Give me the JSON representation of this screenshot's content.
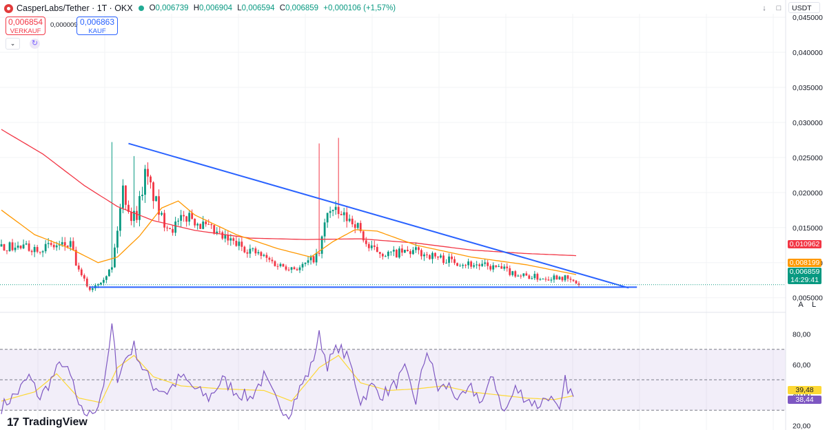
{
  "header": {
    "symbol": "CasperLabs/Tether · 1T · OKX",
    "open_label": "O",
    "open": "0,006739",
    "high_label": "H",
    "high": "0,006904",
    "low_label": "L",
    "low": "0,006594",
    "close_label": "C",
    "close": "0,006859",
    "change": "+0,000106 (+1,57%)"
  },
  "trade": {
    "sell_price": "0,006854",
    "sell_label": "VERKAUF",
    "spread": "0,000009",
    "buy_price": "0,006863",
    "buy_label": "KAUF"
  },
  "toolbar": {
    "currency": "USDT",
    "auto_label": "A",
    "log_label": "L",
    "dropdown_icon": "chevron-down-icon",
    "refresh_icon": "refresh-icon"
  },
  "price_tags": {
    "ma_red": "0,010962",
    "ma_orange": "0,008199",
    "last_price": "0,006859",
    "countdown": "14:29:41",
    "rsi_ma": "39,48",
    "rsi": "38,44"
  },
  "colors": {
    "up": "#089981",
    "down": "#f23645",
    "ma_red": "#f23645",
    "ma_orange": "#ff9800",
    "trendline": "#2962ff",
    "rsi": "#7e57c2",
    "rsi_ma": "#fdd835"
  },
  "watermark": "TradingView",
  "chart_data": [
    {
      "type": "candlestick",
      "y_ticks": [
        "0,045000",
        "0,040000",
        "0,035000",
        "0,030000",
        "0,025000",
        "0,020000",
        "0,015000",
        "0,010000",
        "0,005000"
      ],
      "ylim": [
        0.0035,
        0.0455
      ],
      "x_count": 210,
      "price_path": [
        [
          0,
          0.0123
        ],
        [
          10,
          0.0121
        ],
        [
          18,
          0.0123
        ],
        [
          25,
          0.0125
        ],
        [
          28,
          0.0086
        ],
        [
          32,
          0.0062
        ],
        [
          36,
          0.0076
        ],
        [
          40,
          0.0092
        ],
        [
          44,
          0.0205
        ],
        [
          47,
          0.0165
        ],
        [
          49,
          0.017
        ],
        [
          52,
          0.0225
        ],
        [
          55,
          0.0196
        ],
        [
          58,
          0.0162
        ],
        [
          62,
          0.015
        ],
        [
          68,
          0.0168
        ],
        [
          72,
          0.0155
        ],
        [
          80,
          0.0135
        ],
        [
          90,
          0.0118
        ],
        [
          100,
          0.0097
        ],
        [
          108,
          0.0092
        ],
        [
          115,
          0.0112
        ],
        [
          118,
          0.0175
        ],
        [
          122,
          0.0168
        ],
        [
          128,
          0.0158
        ],
        [
          133,
          0.012
        ],
        [
          140,
          0.0112
        ],
        [
          150,
          0.0116
        ],
        [
          160,
          0.0105
        ],
        [
          170,
          0.0098
        ],
        [
          180,
          0.0092
        ],
        [
          188,
          0.0082
        ],
        [
          196,
          0.0078
        ],
        [
          202,
          0.0081
        ],
        [
          209,
          0.0069
        ]
      ],
      "spikes": [
        [
          40,
          0.0272
        ],
        [
          115,
          0.027
        ],
        [
          122,
          0.0278
        ],
        [
          48,
          0.0252
        ]
      ],
      "moving_averages": [
        {
          "color": "ma_red",
          "points": [
            [
              0,
              0.029
            ],
            [
              15,
              0.0255
            ],
            [
              30,
              0.021
            ],
            [
              42,
              0.018
            ],
            [
              55,
              0.016
            ],
            [
              70,
              0.0146
            ],
            [
              90,
              0.0135
            ],
            [
              110,
              0.0133
            ],
            [
              130,
              0.0134
            ],
            [
              150,
              0.0128
            ],
            [
              170,
              0.0118
            ],
            [
              190,
              0.0113
            ],
            [
              208,
              0.011
            ]
          ]
        },
        {
          "color": "ma_orange",
          "points": [
            [
              0,
              0.0175
            ],
            [
              12,
              0.014
            ],
            [
              25,
              0.012
            ],
            [
              35,
              0.01
            ],
            [
              42,
              0.0108
            ],
            [
              50,
              0.0138
            ],
            [
              58,
              0.0178
            ],
            [
              64,
              0.0188
            ],
            [
              70,
              0.0168
            ],
            [
              85,
              0.014
            ],
            [
              100,
              0.012
            ],
            [
              112,
              0.0108
            ],
            [
              120,
              0.013
            ],
            [
              128,
              0.0147
            ],
            [
              136,
              0.0145
            ],
            [
              150,
              0.0125
            ],
            [
              170,
              0.0108
            ],
            [
              190,
              0.0097
            ],
            [
              208,
              0.0083
            ]
          ]
        }
      ],
      "trendlines": [
        {
          "from": [
            46,
            0.027
          ],
          "to": [
            227,
            0.0064
          ]
        },
        {
          "from": [
            32,
            0.0065
          ],
          "to": [
            230,
            0.0065
          ]
        }
      ],
      "last_price": 0.006859
    },
    {
      "type": "line",
      "name": "RSI",
      "y_ticks": [
        "80,00",
        "60,00",
        "40,00",
        "20,00"
      ],
      "ylim": [
        17,
        88
      ],
      "bands": {
        "upper": 70,
        "middle": 50,
        "lower": 30
      },
      "rsi_path": [
        [
          0,
          32
        ],
        [
          6,
          42
        ],
        [
          10,
          52
        ],
        [
          14,
          38
        ],
        [
          18,
          50
        ],
        [
          22,
          62
        ],
        [
          26,
          48
        ],
        [
          28,
          30
        ],
        [
          32,
          27
        ],
        [
          35,
          34
        ],
        [
          38,
          55
        ],
        [
          40,
          86
        ],
        [
          42,
          52
        ],
        [
          45,
          64
        ],
        [
          48,
          72
        ],
        [
          51,
          58
        ],
        [
          55,
          46
        ],
        [
          60,
          42
        ],
        [
          65,
          52
        ],
        [
          70,
          44
        ],
        [
          75,
          38
        ],
        [
          80,
          50
        ],
        [
          85,
          42
        ],
        [
          90,
          38
        ],
        [
          95,
          52
        ],
        [
          100,
          34
        ],
        [
          104,
          28
        ],
        [
          108,
          44
        ],
        [
          112,
          58
        ],
        [
          115,
          79
        ],
        [
          118,
          60
        ],
        [
          122,
          72
        ],
        [
          126,
          62
        ],
        [
          130,
          36
        ],
        [
          134,
          46
        ],
        [
          138,
          40
        ],
        [
          142,
          46
        ],
        [
          146,
          56
        ],
        [
          150,
          36
        ],
        [
          154,
          70
        ],
        [
          158,
          44
        ],
        [
          162,
          46
        ],
        [
          166,
          36
        ],
        [
          170,
          44
        ],
        [
          174,
          36
        ],
        [
          178,
          52
        ],
        [
          182,
          28
        ],
        [
          186,
          44
        ],
        [
          190,
          38
        ],
        [
          194,
          33
        ],
        [
          198,
          40
        ],
        [
          202,
          27
        ],
        [
          204,
          49
        ],
        [
          207,
          38
        ]
      ],
      "rsi_ma_path": [
        [
          0,
          36
        ],
        [
          12,
          42
        ],
        [
          20,
          54
        ],
        [
          28,
          38
        ],
        [
          36,
          35
        ],
        [
          42,
          58
        ],
        [
          48,
          66
        ],
        [
          55,
          52
        ],
        [
          65,
          46
        ],
        [
          80,
          44
        ],
        [
          95,
          43
        ],
        [
          105,
          36
        ],
        [
          115,
          58
        ],
        [
          122,
          66
        ],
        [
          130,
          48
        ],
        [
          140,
          43
        ],
        [
          150,
          44
        ],
        [
          160,
          46
        ],
        [
          170,
          42
        ],
        [
          180,
          40
        ],
        [
          190,
          38
        ],
        [
          200,
          37
        ],
        [
          207,
          39.5
        ]
      ]
    }
  ]
}
